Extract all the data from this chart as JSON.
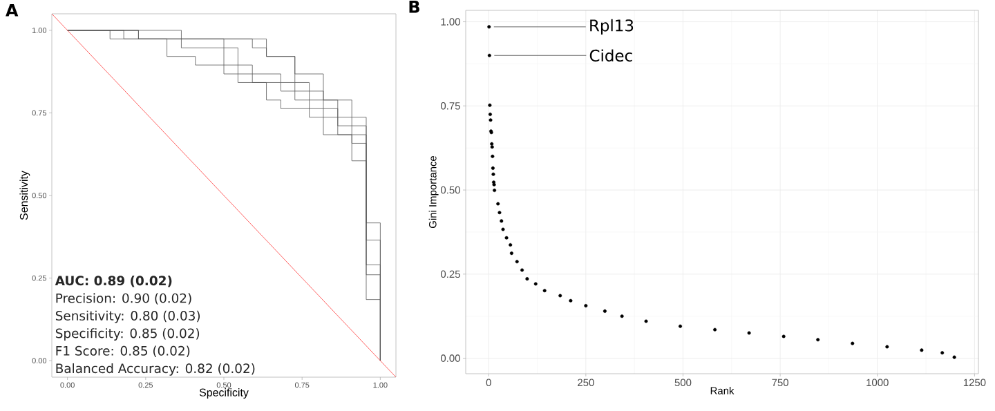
{
  "chart_data": [
    {
      "type": "line",
      "title": "A",
      "xlabel": "Specificity",
      "ylabel": "Sensitivity",
      "xlim": [
        -0.05,
        1.05
      ],
      "ylim": [
        -0.05,
        1.05
      ],
      "xticks": [
        {
          "value": 0,
          "label": "0.00"
        },
        {
          "value": 0.25,
          "label": "0.25"
        },
        {
          "value": 0.5,
          "label": "0.50"
        },
        {
          "value": 0.75,
          "label": "0.75"
        },
        {
          "value": 1,
          "label": "1.00"
        }
      ],
      "yticks": [
        {
          "value": 0,
          "label": "0.00"
        },
        {
          "value": 0.25,
          "label": "0.25"
        },
        {
          "value": 0.5,
          "label": "0.50"
        },
        {
          "value": 0.75,
          "label": "0.75"
        },
        {
          "value": 1,
          "label": "1.00"
        }
      ],
      "marker": "none",
      "series": [
        {
          "color": "#555555",
          "x": [
            0,
            0.227,
            0.227,
            0.591,
            0.591,
            0.636,
            0.636,
            0.727,
            0.727,
            0.773,
            0.773,
            0.818,
            0.818,
            0.864,
            0.864,
            0.909,
            0.909,
            0.955,
            0.955,
            1,
            1
          ],
          "values": [
            1,
            1,
            0.974,
            0.974,
            0.947,
            0.947,
            0.921,
            0.921,
            0.842,
            0.842,
            0.816,
            0.816,
            0.763,
            0.763,
            0.737,
            0.737,
            0.711,
            0.711,
            0.417,
            0.417,
            0
          ]
        },
        {
          "color": "#555555",
          "x": [
            0,
            0.136,
            0.136,
            0.5,
            0.5,
            0.545,
            0.545,
            0.682,
            0.682,
            0.727,
            0.727,
            0.864,
            0.864,
            0.909,
            0.909,
            0.955,
            0.955,
            1,
            1
          ],
          "values": [
            1,
            1,
            0.974,
            0.974,
            0.947,
            0.947,
            0.868,
            0.868,
            0.842,
            0.842,
            0.789,
            0.789,
            0.711,
            0.711,
            0.658,
            0.658,
            0.365,
            0.365,
            0
          ]
        },
        {
          "color": "#555555",
          "x": [
            0,
            0.364,
            0.364,
            0.5,
            0.5,
            0.545,
            0.545,
            0.636,
            0.636,
            0.682,
            0.682,
            0.818,
            0.818,
            0.909,
            0.909,
            0.955,
            0.955,
            1,
            1
          ],
          "values": [
            1,
            1,
            0.947,
            0.947,
            0.868,
            0.868,
            0.842,
            0.842,
            0.789,
            0.789,
            0.763,
            0.763,
            0.684,
            0.684,
            0.605,
            0.605,
            0.26,
            0.26,
            0
          ]
        },
        {
          "color": "#555555",
          "x": [
            0,
            0.18,
            0.18,
            0.318,
            0.318,
            0.409,
            0.409,
            0.591,
            0.591,
            0.682,
            0.682,
            0.773,
            0.773,
            0.864,
            0.864,
            0.955,
            0.955,
            1,
            1
          ],
          "values": [
            1,
            1,
            0.974,
            0.974,
            0.921,
            0.921,
            0.895,
            0.895,
            0.842,
            0.842,
            0.816,
            0.816,
            0.737,
            0.737,
            0.684,
            0.684,
            0.185,
            0.185,
            0
          ]
        },
        {
          "color": "#555555",
          "x": [
            0,
            0.227,
            0.227,
            0.636,
            0.636,
            0.727,
            0.727,
            0.818,
            0.818,
            0.909,
            0.909,
            0.955,
            0.955,
            1,
            1
          ],
          "values": [
            1,
            1,
            0.974,
            0.974,
            0.921,
            0.921,
            0.868,
            0.868,
            0.789,
            0.789,
            0.737,
            0.737,
            0.29,
            0.29,
            0
          ]
        },
        {
          "color": "#ff3b3b",
          "x": [
            -0.05,
            1.05
          ],
          "values": [
            1.05,
            -0.05
          ]
        }
      ],
      "annotations": [
        "**AUC: 0.89 (0.02)**",
        "Precision: 0.90 (0.02)",
        "Sensitivity: 0.80 (0.03)",
        "Specificity: 0.85 (0.02)",
        "F1 Score: 0.85 (0.02)",
        "Balanced Accuracy: 0.82 (0.02)"
      ]
    },
    {
      "type": "scatter",
      "title": "B",
      "xlabel": "Rank",
      "ylabel": "Gini Importance",
      "xlim": [
        -59,
        1260
      ],
      "ylim": [
        -0.046,
        1.034
      ],
      "xticks": [
        0,
        250,
        500,
        750,
        1000,
        1250
      ],
      "yticks": [
        {
          "value": 0,
          "label": "0.00"
        },
        {
          "value": 0.25,
          "label": "0.25"
        },
        {
          "value": 0.5,
          "label": "0.50"
        },
        {
          "value": 0.75,
          "label": "0.75"
        },
        {
          "value": 1,
          "label": "1.00"
        }
      ],
      "grid": true,
      "marker": "circle",
      "series": [
        {
          "color": "#000000",
          "x": [
            1,
            2,
            3,
            4,
            5,
            6,
            7,
            8,
            9,
            10,
            11,
            12,
            13,
            14,
            15,
            24,
            28,
            33,
            37,
            46,
            56,
            59,
            73,
            86,
            99,
            121,
            144,
            184,
            211,
            250,
            299,
            343,
            405,
            493,
            582,
            670,
            759,
            847,
            936,
            1025,
            1114,
            1167,
            1198
          ],
          "values": [
            0.985,
            0.9,
            0.752,
            0.725,
            0.708,
            0.675,
            0.671,
            0.637,
            0.628,
            0.6,
            0.565,
            0.547,
            0.523,
            0.516,
            0.499,
            0.459,
            0.433,
            0.408,
            0.383,
            0.358,
            0.337,
            0.312,
            0.287,
            0.262,
            0.236,
            0.221,
            0.201,
            0.186,
            0.171,
            0.156,
            0.14,
            0.125,
            0.11,
            0.095,
            0.085,
            0.075,
            0.065,
            0.055,
            0.044,
            0.034,
            0.024,
            0.016,
            0.003
          ]
        }
      ],
      "annotations": [
        {
          "text": "Rpl13",
          "x": 1,
          "y": 0.985
        },
        {
          "text": "Cidec",
          "x": 2,
          "y": 0.9
        }
      ]
    }
  ]
}
